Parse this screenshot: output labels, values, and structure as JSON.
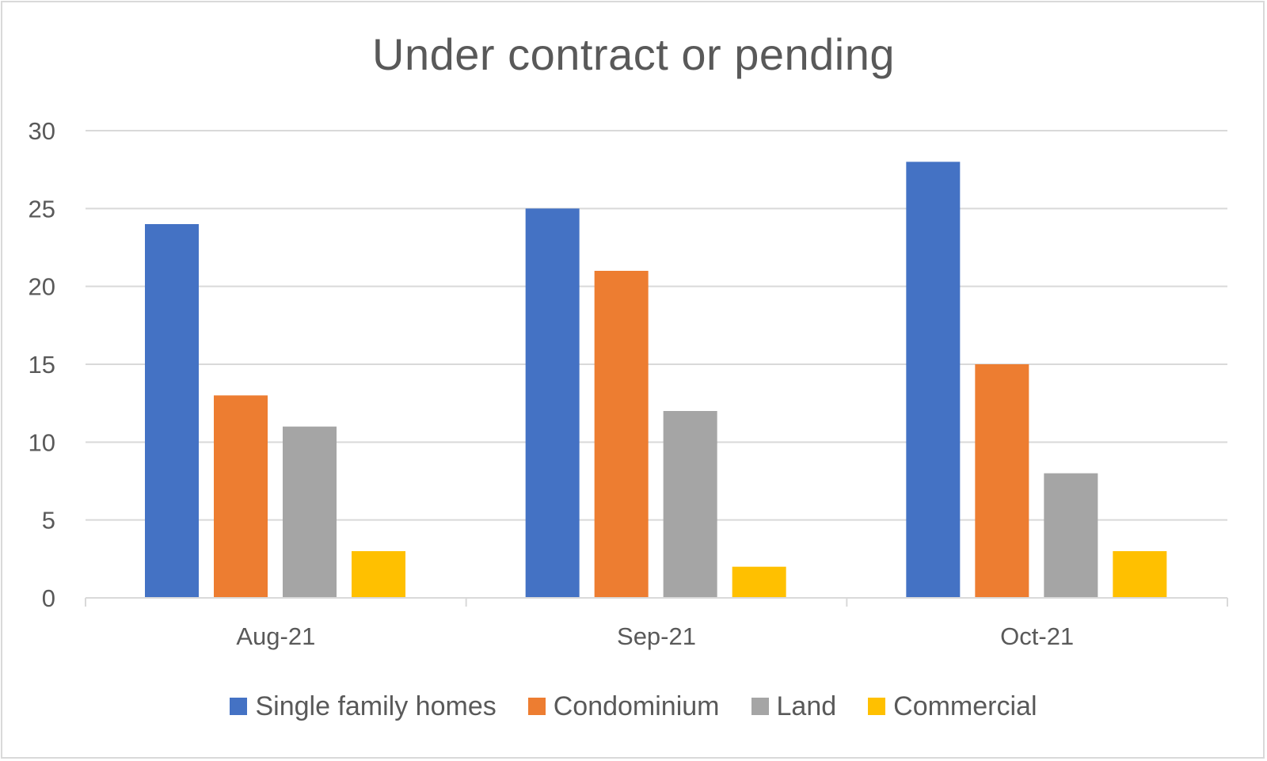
{
  "chart_data": {
    "type": "bar",
    "title": "Under contract or pending",
    "categories": [
      "Aug-21",
      "Sep-21",
      "Oct-21"
    ],
    "series": [
      {
        "name": "Single family homes",
        "values": [
          24,
          25,
          28
        ],
        "color": "#4472C4"
      },
      {
        "name": "Condominium",
        "values": [
          13,
          21,
          15
        ],
        "color": "#ED7D31"
      },
      {
        "name": "Land",
        "values": [
          11,
          12,
          8
        ],
        "color": "#A5A5A5"
      },
      {
        "name": "Commercial",
        "values": [
          3,
          2,
          3
        ],
        "color": "#FFC000"
      }
    ],
    "y_ticks": [
      "0",
      "5",
      "10",
      "15",
      "20",
      "25",
      "30"
    ],
    "ylim": [
      0,
      30
    ],
    "grid": true,
    "legend_position": "bottom",
    "xlabel": "",
    "ylabel": ""
  }
}
